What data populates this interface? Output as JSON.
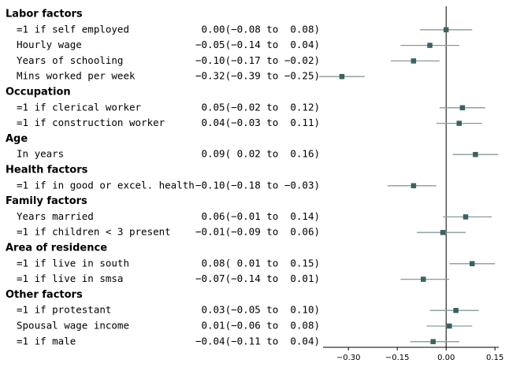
{
  "chart_data": {
    "type": "forest",
    "title": "",
    "xlabel": "",
    "ylabel": "",
    "xlim": [
      -0.39,
      0.16
    ],
    "x_ticks": [
      -0.3,
      -0.15,
      0.0,
      0.15
    ],
    "x_tick_labels": [
      "−0.30",
      "−0.15",
      "0.00",
      "0.15"
    ],
    "reference_line": 0.0,
    "colors": {
      "point": "#3e6160",
      "ci_line": "#8a9a9a",
      "axis": "#000000"
    },
    "groups": [
      {
        "name": "Labor factors",
        "rows": [
          {
            "label": "=1 if self employed",
            "estimate_text": "0.00(−0.08 to  0.08)",
            "est": 0.0,
            "lo": -0.08,
            "hi": 0.08
          },
          {
            "label": "Hourly wage",
            "estimate_text": "−0.05(−0.14 to  0.04)",
            "est": -0.05,
            "lo": -0.14,
            "hi": 0.04
          },
          {
            "label": "Years of schooling",
            "estimate_text": "−0.10(−0.17 to −0.02)",
            "est": -0.1,
            "lo": -0.17,
            "hi": -0.02
          },
          {
            "label": "Mins worked per week",
            "estimate_text": "−0.32(−0.39 to −0.25)",
            "est": -0.32,
            "lo": -0.39,
            "hi": -0.25
          }
        ]
      },
      {
        "name": "Occupation",
        "rows": [
          {
            "label": "=1 if clerical worker",
            "estimate_text": "0.05(−0.02 to  0.12)",
            "est": 0.05,
            "lo": -0.02,
            "hi": 0.12
          },
          {
            "label": "=1 if construction worker",
            "estimate_text": "0.04(−0.03 to  0.11)",
            "est": 0.04,
            "lo": -0.03,
            "hi": 0.11
          }
        ]
      },
      {
        "name": "Age",
        "rows": [
          {
            "label": "In years",
            "estimate_text": "0.09( 0.02 to  0.16)",
            "est": 0.09,
            "lo": 0.02,
            "hi": 0.16
          }
        ]
      },
      {
        "name": "Health factors",
        "rows": [
          {
            "label": "=1 if in good or excel. health",
            "estimate_text": "−0.10(−0.18 to −0.03)",
            "est": -0.1,
            "lo": -0.18,
            "hi": -0.03
          }
        ]
      },
      {
        "name": "Family factors",
        "rows": [
          {
            "label": "Years married",
            "estimate_text": "0.06(−0.01 to  0.14)",
            "est": 0.06,
            "lo": -0.01,
            "hi": 0.14
          },
          {
            "label": "=1 if children < 3 present",
            "estimate_text": "−0.01(−0.09 to  0.06)",
            "est": -0.01,
            "lo": -0.09,
            "hi": 0.06
          }
        ]
      },
      {
        "name": "Area of residence",
        "rows": [
          {
            "label": "=1 if live in south",
            "estimate_text": "0.08( 0.01 to  0.15)",
            "est": 0.08,
            "lo": 0.01,
            "hi": 0.15
          },
          {
            "label": "=1 if live in smsa",
            "estimate_text": "−0.07(−0.14 to  0.01)",
            "est": -0.07,
            "lo": -0.14,
            "hi": 0.01
          }
        ]
      },
      {
        "name": "Other factors",
        "rows": [
          {
            "label": "=1 if protestant",
            "estimate_text": "0.03(−0.05 to  0.10)",
            "est": 0.03,
            "lo": -0.05,
            "hi": 0.1
          },
          {
            "label": "Spousal wage income",
            "estimate_text": "0.01(−0.06 to  0.08)",
            "est": 0.01,
            "lo": -0.06,
            "hi": 0.08
          },
          {
            "label": "=1 if male",
            "estimate_text": "−0.04(−0.11 to  0.04)",
            "est": -0.04,
            "lo": -0.11,
            "hi": 0.04
          }
        ]
      }
    ]
  }
}
